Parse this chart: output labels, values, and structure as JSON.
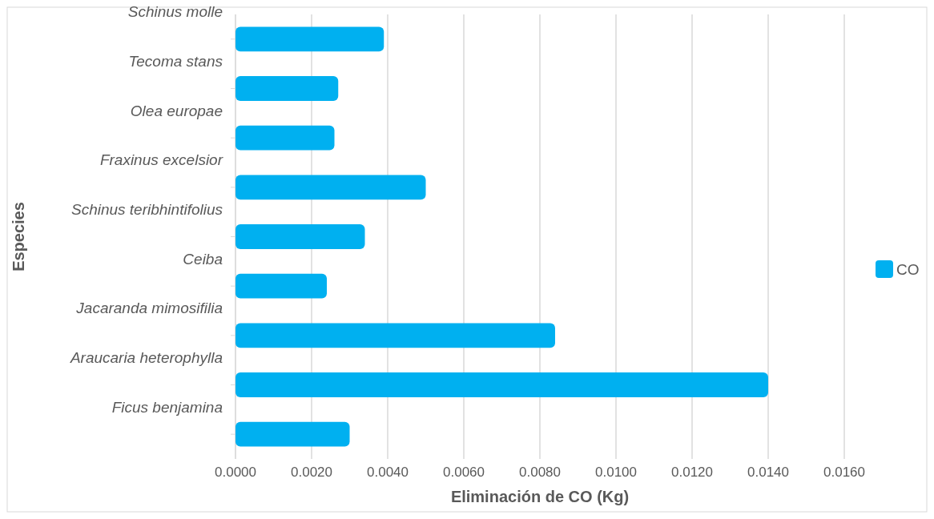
{
  "chart_data": {
    "type": "bar",
    "orientation": "horizontal",
    "xlabel": "Eliminación de CO (Kg)",
    "ylabel": "Especies",
    "categories": [
      "Schinus molle",
      "Tecoma stans",
      "Olea europae",
      "Fraxinus excelsior",
      "Schinus teribhintifolius",
      "Ceiba",
      "Jacaranda mimosifilia",
      "Araucaria heterophylla",
      "Ficus benjamina"
    ],
    "series": [
      {
        "name": "CO",
        "color": "#00b0f0",
        "values": [
          0.0039,
          0.0027,
          0.0026,
          0.005,
          0.0034,
          0.0024,
          0.0084,
          0.014,
          0.003
        ]
      }
    ],
    "xlim": [
      0,
      0.016
    ],
    "xticks": [
      {
        "value": 0,
        "label": "0.0000"
      },
      {
        "value": 0.002,
        "label": "0.0020"
      },
      {
        "value": 0.004,
        "label": "0.0040"
      },
      {
        "value": 0.006,
        "label": "0.0060"
      },
      {
        "value": 0.008,
        "label": "0.0080"
      },
      {
        "value": 0.01,
        "label": "0.0100"
      },
      {
        "value": 0.012,
        "label": "0.0120"
      },
      {
        "value": 0.014,
        "label": "0.0140"
      },
      {
        "value": 0.016,
        "label": "0.0160"
      }
    ],
    "grid": "x",
    "legend": "right"
  }
}
